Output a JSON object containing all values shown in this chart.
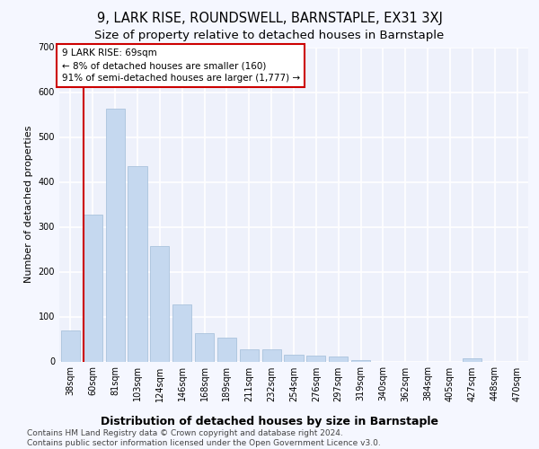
{
  "title": "9, LARK RISE, ROUNDSWELL, BARNSTAPLE, EX31 3XJ",
  "subtitle": "Size of property relative to detached houses in Barnstaple",
  "xlabel": "Distribution of detached houses by size in Barnstaple",
  "ylabel": "Number of detached properties",
  "categories": [
    "38sqm",
    "60sqm",
    "81sqm",
    "103sqm",
    "124sqm",
    "146sqm",
    "168sqm",
    "189sqm",
    "211sqm",
    "232sqm",
    "254sqm",
    "276sqm",
    "297sqm",
    "319sqm",
    "340sqm",
    "362sqm",
    "384sqm",
    "405sqm",
    "427sqm",
    "448sqm",
    "470sqm"
  ],
  "values": [
    70,
    328,
    563,
    435,
    258,
    127,
    63,
    53,
    28,
    28,
    15,
    13,
    12,
    4,
    0,
    0,
    0,
    0,
    7,
    0,
    0
  ],
  "bar_color": "#c5d8ef",
  "bar_edge_color": "#a0bcd8",
  "vline_x_index": 1,
  "vline_color": "#cc0000",
  "annotation_text": "9 LARK RISE: 69sqm\n← 8% of detached houses are smaller (160)\n91% of semi-detached houses are larger (1,777) →",
  "annotation_box_color": "#ffffff",
  "annotation_box_edge": "#cc0000",
  "ylim": [
    0,
    700
  ],
  "yticks": [
    0,
    100,
    200,
    300,
    400,
    500,
    600,
    700
  ],
  "footer": "Contains HM Land Registry data © Crown copyright and database right 2024.\nContains public sector information licensed under the Open Government Licence v3.0.",
  "bg_color": "#f5f7ff",
  "plot_bg_color": "#eef1fb",
  "grid_color": "#ffffff",
  "title_fontsize": 10.5,
  "subtitle_fontsize": 9.5,
  "xlabel_fontsize": 9,
  "ylabel_fontsize": 8,
  "tick_fontsize": 7,
  "footer_fontsize": 6.5,
  "annotation_fontsize": 7.5
}
